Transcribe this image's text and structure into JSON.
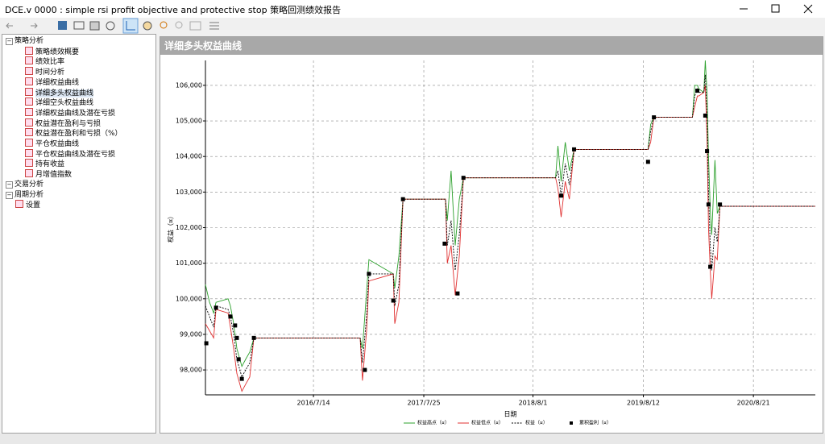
{
  "window": {
    "title": "DCE.v 0000 : simple rsi profit objective and protective stop 策略回测绩效报告"
  },
  "tree": [
    {
      "label": "策略分析",
      "children": [
        "策略绩效概要",
        "绩效比率",
        "时间分析",
        "详细权益曲线",
        "详细多头权益曲线",
        "详细空头权益曲线",
        "详细权益曲线及潜在亏损",
        "权益潜在盈利与亏损",
        "权益潜在盈利和亏损（%）",
        "平仓权益曲线",
        "平仓权益曲线及潜在亏损",
        "持有收益",
        "月增值指数"
      ]
    },
    {
      "label": "交易分析",
      "children": []
    },
    {
      "label": "周期分析",
      "children": []
    },
    {
      "label": "设置",
      "children": []
    }
  ],
  "panel": {
    "title": "详细多头权益曲线"
  },
  "chart_data": {
    "type": "line",
    "ylabel": "权益（¤）",
    "xlabel": "日期",
    "x": [
      "2015/7/12",
      "2015/7/26",
      "2015/8/9",
      "2015/8/17",
      "2015/9/27",
      "2015/10/5",
      "2015/10/16",
      "2015/10/27",
      "2015/11/13",
      "2015/11/26",
      "2015/12/10",
      "2015/12/24",
      "2016/12/20",
      "2016/12/28",
      "2017/1/11",
      "2017/1/19",
      "2017/4/12",
      "2017/4/17",
      "2017/5/1",
      "2017/5/15",
      "2017/10/7",
      "2017/10/13",
      "2017/10/26",
      "2017/11/9",
      "2017/11/23",
      "2017/12/7",
      "2018/10/17",
      "2018/10/25",
      "2018/11/5",
      "2018/11/19",
      "2018/12/3",
      "2018/12/19",
      "2019/8/28",
      "2019/9/6",
      "2019/9/17",
      "2020/1/26",
      "2020/2/3",
      "2020/2/12",
      "2020/2/17",
      "2020/3/5",
      "2020/3/10",
      "2020/3/16",
      "2020/3/21",
      "2020/3/27",
      "2020/4/1",
      "2020/4/12",
      "2020/4/20",
      "2020/4/29",
      "2021/3/20"
    ],
    "series": [
      {
        "name": "权益高点（¤）",
        "color": "#2ca02c",
        "style": "solid",
        "values": [
          100400,
          99900,
          99600,
          99900,
          100000,
          99800,
          99300,
          98600,
          98100,
          98300,
          98500,
          98900,
          98900,
          98600,
          100200,
          101100,
          100700,
          100300,
          101200,
          102800,
          102800,
          102200,
          103600,
          101500,
          102800,
          103400,
          103400,
          104300,
          103300,
          104400,
          103600,
          104200,
          104200,
          104900,
          105100,
          105100,
          106000,
          106000,
          105900,
          105800,
          106700,
          105800,
          104000,
          102500,
          101800,
          103900,
          102400,
          102600,
          102600
        ]
      },
      {
        "name": "权益低点（¤）",
        "color": "#e03030",
        "style": "solid",
        "values": [
          99300,
          99100,
          98900,
          99700,
          99600,
          99200,
          98600,
          97900,
          97400,
          97600,
          97800,
          98900,
          98900,
          97700,
          99100,
          100500,
          100700,
          99300,
          99900,
          102800,
          102800,
          101000,
          101500,
          100100,
          101200,
          103400,
          103400,
          103100,
          102300,
          103300,
          102800,
          104200,
          104200,
          104400,
          105100,
          105100,
          105400,
          105700,
          105700,
          105800,
          106000,
          104500,
          102000,
          100800,
          100000,
          101200,
          101100,
          102600,
          102600
        ]
      },
      {
        "name": "权益（¤）",
        "color": "#000000",
        "style": "dashed",
        "values": [
          99800,
          99500,
          99200,
          99800,
          99700,
          99500,
          99000,
          98300,
          97800,
          98000,
          98200,
          98900,
          98900,
          98200,
          99500,
          100700,
          100700,
          99800,
          100400,
          102800,
          102800,
          101500,
          102200,
          100800,
          101800,
          103400,
          103400,
          103600,
          102900,
          103800,
          103200,
          104200,
          104200,
          104700,
          105100,
          105100,
          105700,
          105900,
          105800,
          105800,
          106300,
          105200,
          103000,
          101500,
          100800,
          102000,
          101600,
          102600,
          102600
        ]
      },
      {
        "name": "累积盈利（¤）",
        "color": "#000000",
        "style": "marker",
        "x": [
          "2015/7/15",
          "2015/8/17",
          "2015/10/5",
          "2015/10/21",
          "2015/10/27",
          "2015/11/2",
          "2015/11/13",
          "2015/12/24",
          "2017/1/5",
          "2017/1/19",
          "2017/4/12",
          "2017/5/15",
          "2017/10/4",
          "2017/11/17",
          "2017/12/7",
          "2018/11/5",
          "2018/12/19",
          "2019/8/28",
          "2019/9/17",
          "2020/2/12",
          "2020/3/10",
          "2020/3/16",
          "2020/3/21",
          "2020/3/27",
          "2020/4/29"
        ],
        "values": [
          98750,
          99750,
          99500,
          99250,
          98900,
          98300,
          97750,
          98900,
          98000,
          100700,
          99950,
          102800,
          101550,
          100150,
          103400,
          102900,
          104200,
          103850,
          105100,
          105850,
          105150,
          104150,
          102650,
          100900,
          102650
        ]
      }
    ],
    "xlim": [
      "2015/7/12",
      "2021/3/20"
    ],
    "xticks": [
      "2016/7/14",
      "2017/7/25",
      "2018/8/1",
      "2019/8/12",
      "2020/8/21"
    ],
    "ylim": [
      97300,
      106700
    ],
    "yticks": [
      {
        "value": 98000,
        "label": "98,000"
      },
      {
        "value": 99000,
        "label": "99,000"
      },
      {
        "value": 100000,
        "label": "100,000"
      },
      {
        "value": 101000,
        "label": "101,000"
      },
      {
        "value": 102000,
        "label": "102,000"
      },
      {
        "value": 103000,
        "label": "103,000"
      },
      {
        "value": 104000,
        "label": "104,000"
      },
      {
        "value": 105000,
        "label": "105,000"
      },
      {
        "value": 106000,
        "label": "106,000"
      }
    ],
    "grid": true
  }
}
